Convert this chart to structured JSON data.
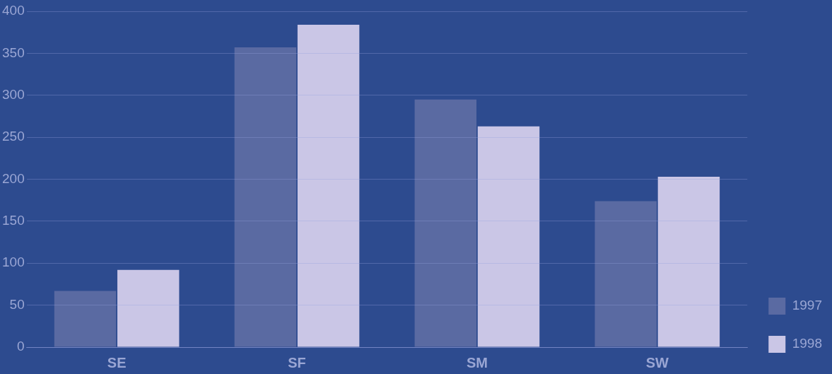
{
  "chart_data": {
    "type": "bar",
    "categories": [
      "SE",
      "SF",
      "SM",
      "SW"
    ],
    "series": [
      {
        "name": "1997",
        "color": "#5a6aa2",
        "values": [
          67,
          357,
          295,
          174
        ]
      },
      {
        "name": "1998",
        "color": "#cac6e6",
        "values": [
          92,
          384,
          263,
          203
        ]
      }
    ],
    "ylim": [
      0,
      400
    ],
    "yticks": [
      0,
      50,
      100,
      150,
      200,
      250,
      300,
      350,
      400
    ],
    "grid": "y",
    "legend": "bottom right"
  }
}
